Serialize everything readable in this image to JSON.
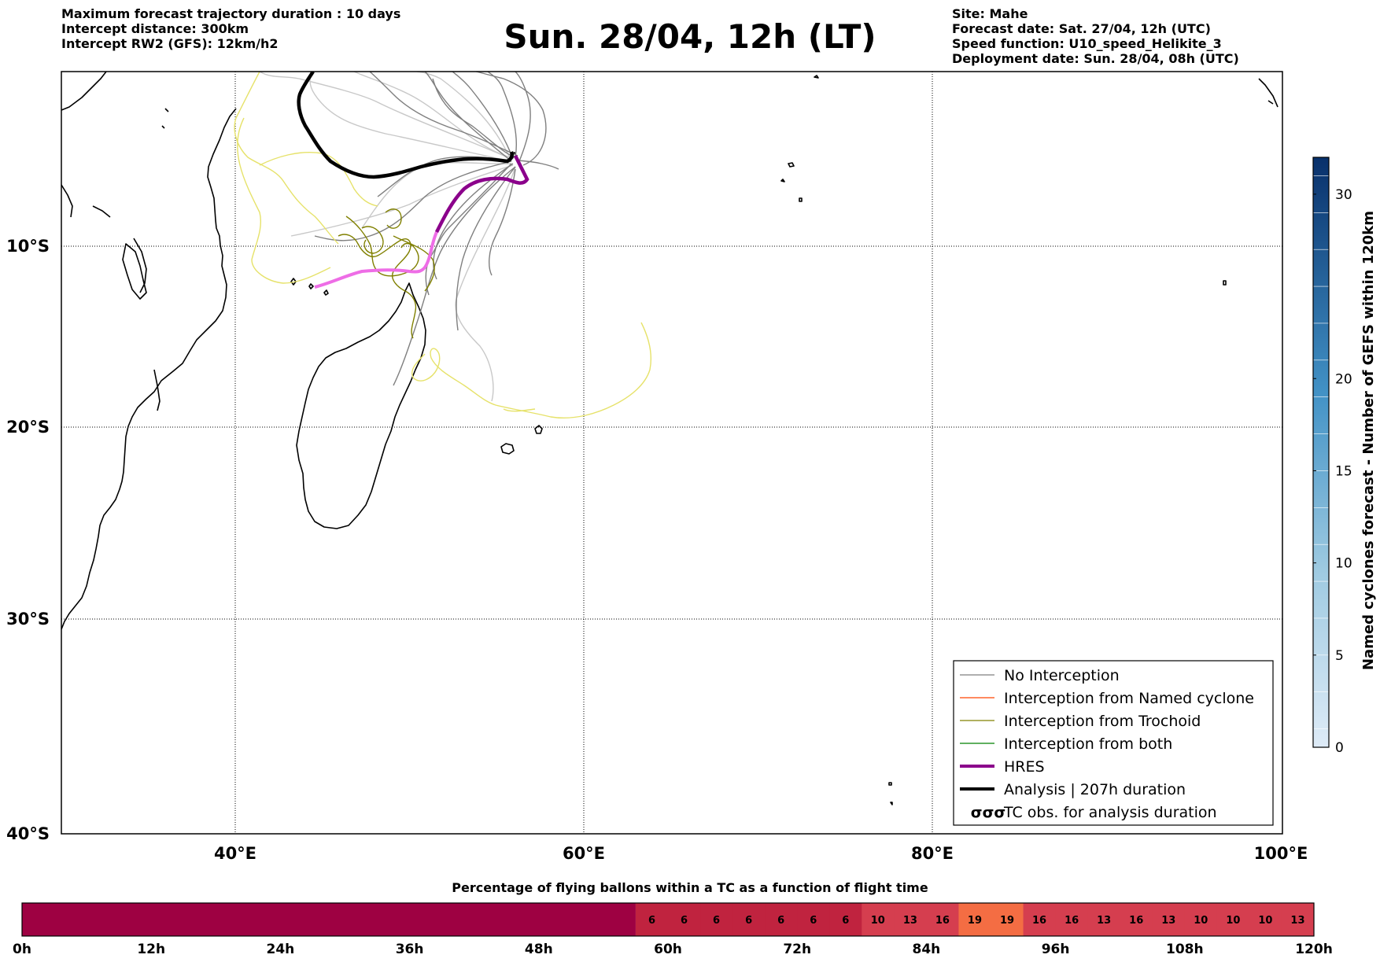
{
  "header": {
    "left_lines": [
      "Maximum forecast trajectory duration : 10 days",
      "Intercept distance: 300km",
      "Intercept RW2 (GFS):  12km/h2"
    ],
    "title": "Sun. 28/04, 12h (LT)",
    "right_lines": [
      "Site: Mahe",
      "Forecast date: Sat. 27/04, 12h (UTC)",
      "Speed function: U10_speed_Helikite_3",
      "Deployment date: Sun. 28/04, 08h (UTC)"
    ]
  },
  "map": {
    "lon_ticks": [
      "40°E",
      "60°E",
      "80°E",
      "100°E"
    ],
    "lat_ticks": [
      "10°S",
      "20°S",
      "30°S",
      "40°S"
    ],
    "lon_range": [
      30,
      100
    ],
    "lat_range": [
      -40,
      1
    ]
  },
  "legend": {
    "items": [
      {
        "label": "No Interception",
        "color": "#7f7f7f",
        "style": "thin"
      },
      {
        "label": "Interception from Named cyclone",
        "color": "#ff4500",
        "style": "thin"
      },
      {
        "label": "Interception from Trochoid",
        "color": "#808000",
        "style": "thin"
      },
      {
        "label": "Interception from both",
        "color": "#008000",
        "style": "thin"
      },
      {
        "label": "HRES",
        "color": "#8b008b",
        "style": "thick"
      },
      {
        "label": "Analysis | 207h duration",
        "color": "#000000",
        "style": "thick"
      },
      {
        "label": "TC obs. for analysis duration",
        "color": "#000000",
        "style": "symbol",
        "symbol": "σσσ"
      }
    ]
  },
  "colorbar": {
    "label": "Named cyclones forecast - Number of GEFS within 120km",
    "ticks": [
      "0",
      "5",
      "10",
      "15",
      "20",
      "30"
    ],
    "range": [
      0,
      32
    ]
  },
  "flight_bar": {
    "title": "Percentage of flying ballons within a TC as a function of flight time",
    "time_labels": [
      "0h",
      "12h",
      "24h",
      "36h",
      "48h",
      "60h",
      "72h",
      "84h",
      "96h",
      "108h",
      "120h"
    ],
    "empty_hours": 57,
    "values": [
      6,
      6,
      6,
      6,
      6,
      6,
      6,
      10,
      13,
      16,
      19,
      19,
      16,
      16,
      13,
      16,
      13,
      10,
      10,
      10,
      13
    ],
    "colors": {
      "zero": "#9e0142",
      "low": "#c0233f",
      "mid": "#d53e4f",
      "high": "#f46d43"
    }
  }
}
